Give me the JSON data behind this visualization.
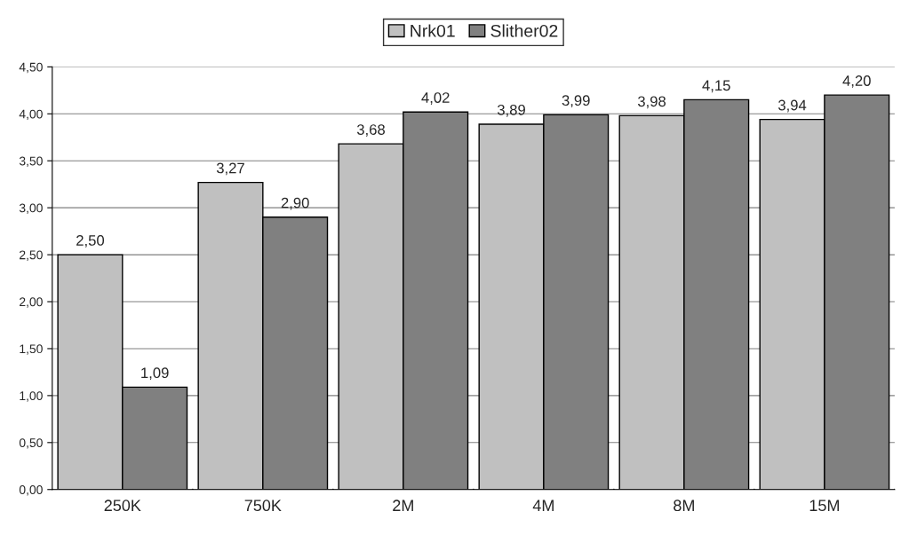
{
  "chart_data": {
    "type": "bar",
    "categories": [
      "250K",
      "750K",
      "2M",
      "4M",
      "8M",
      "15M"
    ],
    "series": [
      {
        "name": "Nrk01",
        "color": "#c0c0c0",
        "values": [
          2.5,
          3.27,
          3.68,
          3.89,
          3.98,
          3.94
        ],
        "value_labels": [
          "2,50",
          "3,27",
          "3,68",
          "3,89",
          "3,98",
          "3,94"
        ]
      },
      {
        "name": "Slither02",
        "color": "#808080",
        "values": [
          1.09,
          2.9,
          4.02,
          3.99,
          4.15,
          4.2
        ],
        "value_labels": [
          "1,09",
          "2,90",
          "4,02",
          "3,99",
          "4,15",
          "4,20"
        ]
      }
    ],
    "ylim": [
      0,
      4.5
    ],
    "yticks": [
      {
        "value": 0,
        "label": "0,00"
      },
      {
        "value": 0.5,
        "label": "0,50"
      },
      {
        "value": 1,
        "label": "1,00"
      },
      {
        "value": 1.5,
        "label": "1,50"
      },
      {
        "value": 2,
        "label": "2,00"
      },
      {
        "value": 2.5,
        "label": "2,50"
      },
      {
        "value": 3,
        "label": "3,00"
      },
      {
        "value": 3.5,
        "label": "3,50"
      },
      {
        "value": 4,
        "label": "4,00"
      },
      {
        "value": 4.5,
        "label": "4,50"
      }
    ],
    "grid": "y",
    "legend": "top"
  }
}
